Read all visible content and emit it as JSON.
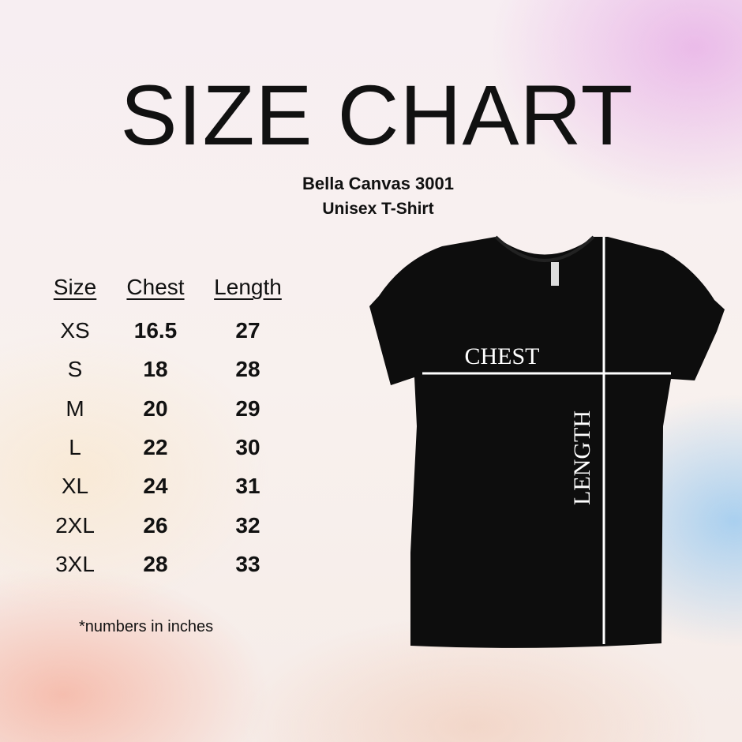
{
  "title": "SIZE CHART",
  "subtitle_line1": "Bella Canvas 3001",
  "subtitle_line2": "Unisex T-Shirt",
  "table": {
    "headers": [
      "Size",
      "Chest",
      "Length"
    ],
    "rows": [
      [
        "XS",
        "16.5",
        "27"
      ],
      [
        "S",
        "18",
        "28"
      ],
      [
        "M",
        "20",
        "29"
      ],
      [
        "L",
        "22",
        "30"
      ],
      [
        "XL",
        "24",
        "31"
      ],
      [
        "2XL",
        "26",
        "32"
      ],
      [
        "3XL",
        "28",
        "33"
      ]
    ]
  },
  "note": "*numbers in inches",
  "shirt": {
    "chest_label": "CHEST",
    "length_label": "LENGTH",
    "color": "#0d0d0d"
  }
}
